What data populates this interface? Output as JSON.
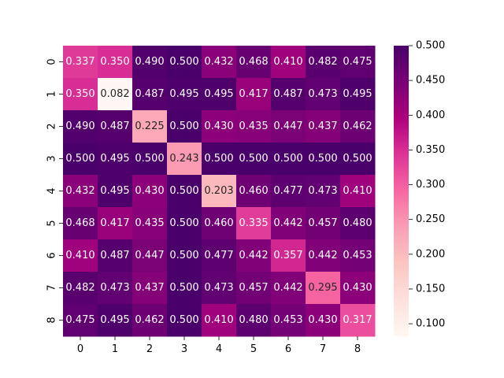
{
  "chart_data": {
    "type": "heatmap",
    "title": "",
    "xlabel": "",
    "ylabel": "",
    "x_categories": [
      "0",
      "1",
      "2",
      "3",
      "4",
      "5",
      "6",
      "7",
      "8"
    ],
    "y_categories": [
      "0",
      "1",
      "2",
      "3",
      "4",
      "5",
      "6",
      "7",
      "8"
    ],
    "values": [
      [
        0.337,
        0.35,
        0.49,
        0.5,
        0.432,
        0.468,
        0.41,
        0.482,
        0.475
      ],
      [
        0.35,
        0.082,
        0.487,
        0.495,
        0.495,
        0.417,
        0.487,
        0.473,
        0.495
      ],
      [
        0.49,
        0.487,
        0.225,
        0.5,
        0.43,
        0.435,
        0.447,
        0.437,
        0.462
      ],
      [
        0.5,
        0.495,
        0.5,
        0.243,
        0.5,
        0.5,
        0.5,
        0.5,
        0.5
      ],
      [
        0.432,
        0.495,
        0.43,
        0.5,
        0.203,
        0.46,
        0.477,
        0.473,
        0.41
      ],
      [
        0.468,
        0.417,
        0.435,
        0.5,
        0.46,
        0.335,
        0.442,
        0.457,
        0.48
      ],
      [
        0.41,
        0.487,
        0.447,
        0.5,
        0.477,
        0.442,
        0.357,
        0.442,
        0.453
      ],
      [
        0.482,
        0.473,
        0.437,
        0.5,
        0.473,
        0.457,
        0.442,
        0.295,
        0.43
      ],
      [
        0.475,
        0.495,
        0.462,
        0.5,
        0.41,
        0.48,
        0.453,
        0.43,
        0.317
      ]
    ],
    "value_format_decimals": 3,
    "colormap": "RdPu",
    "color_range": [
      0.082,
      0.5
    ],
    "colorbar_ticks": [
      "0.100",
      "0.150",
      "0.200",
      "0.250",
      "0.300",
      "0.350",
      "0.400",
      "0.450",
      "0.500"
    ],
    "colorbar_placement": "right",
    "grid": false
  }
}
